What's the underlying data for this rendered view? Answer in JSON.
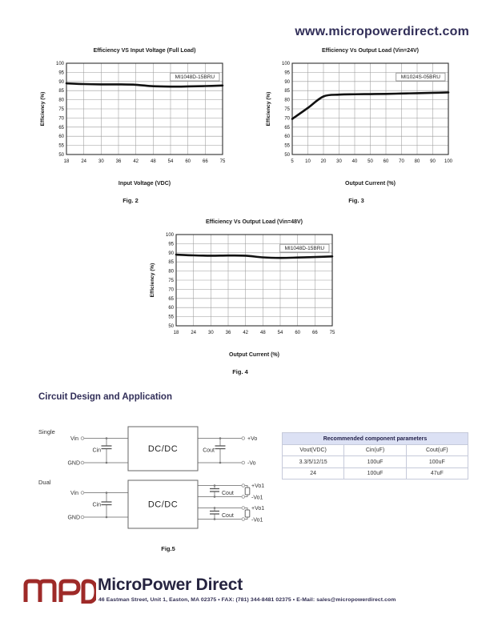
{
  "page": {
    "website_url": "www.micropowerdirect.com",
    "section_heading": "Circuit Design and Application"
  },
  "chart_data": [
    {
      "type": "line",
      "title": "Efficiency VS Input Voltage (Full Load)",
      "series_label": "MI1048D-15BRU",
      "xlabel": "Input Voltage (VDC)",
      "ylabel": "Efficiency (%)",
      "fig_caption": "Fig. 2",
      "x_ticks": [
        "18",
        "24",
        "30",
        "36",
        "42",
        "48",
        "54",
        "60",
        "66",
        "75"
      ],
      "values": [
        89,
        88.6,
        88.4,
        88.4,
        88.2,
        87.4,
        87.2,
        87.3,
        87.5,
        87.8
      ],
      "ylim": [
        50,
        100
      ],
      "y_tick_step": 5,
      "grid": true,
      "legend_position": "inside-top-right"
    },
    {
      "type": "line",
      "title": "Efficiency Vs Output Load (Vin=24V)",
      "series_label": "MI1024S-05BRU",
      "xlabel": "Output Current (%)",
      "ylabel": "Efficiency (%)",
      "fig_caption": "Fig. 3",
      "x_ticks": [
        "5",
        "10",
        "20",
        "30",
        "40",
        "50",
        "60",
        "70",
        "80",
        "90",
        "100"
      ],
      "values": [
        69.5,
        75.5,
        81.8,
        82.8,
        83,
        83.1,
        83.2,
        83.4,
        83.6,
        83.8,
        84
      ],
      "ylim": [
        50,
        100
      ],
      "y_tick_step": 5,
      "grid": true,
      "legend_position": "inside-top-right"
    },
    {
      "type": "line",
      "title": "Efficiency Vs Output Load  (Vin=48V)",
      "series_label": "MI1048D-15BRU",
      "xlabel": "Output Current (%)",
      "ylabel": "Efficiency (%)",
      "fig_caption": "Fig. 4",
      "x_ticks": [
        "18",
        "24",
        "30",
        "36",
        "42",
        "48",
        "54",
        "60",
        "66",
        "75"
      ],
      "values": [
        89,
        88.6,
        88.4,
        88.5,
        88.4,
        87.5,
        87.2,
        87.4,
        87.7,
        88
      ],
      "ylim": [
        50,
        100
      ],
      "y_tick_step": 5,
      "grid": true,
      "legend_position": "inside-top-right"
    }
  ],
  "circuit": {
    "single_label": "Single",
    "dual_label": "Dual",
    "vin_label": "Vin",
    "gnd_label": "GND",
    "cin_label": "Cin",
    "cout_label": "Cout",
    "dcdc_label": "DC/DC",
    "single_out_pos": "+Vo",
    "single_out_neg": "-Vo",
    "dual_out1_pos": "+Vo1",
    "dual_out1_neg": "-Vo1",
    "dual_out2_pos": "+Vo1",
    "dual_out2_neg": "-Vo1",
    "fig_caption": "Fig.5"
  },
  "component_table": {
    "title": "Recommended component parameters",
    "columns": [
      "Vout(VDC)",
      "Cin(uF)",
      "Cout(uF)"
    ],
    "rows": [
      [
        "3.3/5/12/15",
        "100uF",
        "100uF"
      ],
      [
        "24",
        "100uF",
        "47uF"
      ]
    ]
  },
  "footer": {
    "logo_text": "MPD",
    "company_name": "MicroPower Direct",
    "address_line": "46 Eastman Street, Unit 1, Easton, MA 02375 • FAX: (781) 344-8481 02375 • E-Mail: sales@micropowerdirect.com"
  },
  "colors": {
    "brand_navy": "#312e58",
    "logo_red": "#9e2a28",
    "table_header_bg": "#dce1f4",
    "curve_color": "#111111",
    "grid_color": "#9a9a9a"
  }
}
